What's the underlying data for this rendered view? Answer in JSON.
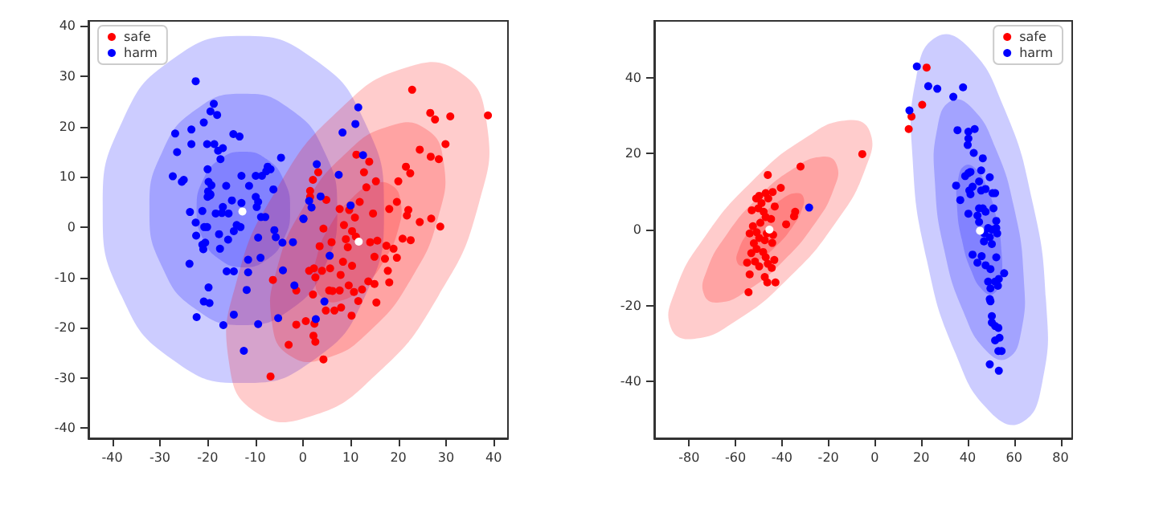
{
  "chart_data": [
    {
      "type": "scatter",
      "xlim": [
        -45,
        43
      ],
      "ylim": [
        -42,
        41
      ],
      "xticks": [
        -40,
        -30,
        -20,
        -10,
        0,
        10,
        20,
        30,
        40
      ],
      "yticks": [
        -40,
        -30,
        -20,
        -10,
        0,
        10,
        20,
        30,
        40
      ],
      "grid": false,
      "legend": "top left",
      "series": [
        {
          "type": "area",
          "color": "#0000ff",
          "x": [
            17,
            13,
            2.3,
            -12.5,
            -27.3,
            -38,
            -42,
            -38,
            -27.3,
            -12.5,
            2.3,
            13
          ],
          "values": [
            3.5,
            20.8,
            33.4,
            38,
            33.4,
            20.8,
            3.5,
            -13.8,
            -26.4,
            -31,
            -26.4,
            -13.8
          ]
        },
        {
          "type": "area",
          "color": "#0000ff",
          "x": [
            7.2,
            4.5,
            -2.6,
            -12.5,
            -22.4,
            -29.5,
            -32.2,
            -29.5,
            -22.4,
            -12.5,
            -2.6,
            4.5
          ],
          "values": [
            3.5,
            15,
            23.4,
            26.5,
            23.4,
            15,
            3.5,
            -8,
            -16.4,
            -19.5,
            -16.4,
            -8
          ]
        },
        {
          "type": "area",
          "color": "#0000ff",
          "x": [
            -2.7,
            -4,
            -7.6,
            -12.5,
            -17.4,
            -21,
            -22.3,
            -21,
            -17.4,
            -12.5,
            -7.6,
            -4
          ],
          "values": [
            3.5,
            9.3,
            13.5,
            15,
            13.5,
            9.3,
            3.5,
            -2.3,
            -6.5,
            -8,
            -6.5,
            -2.3
          ]
        },
        {
          "type": "area",
          "color": "#ff0000",
          "x": [
            32.9,
            38.5,
            36.9,
            28.4,
            15.5,
            1.4,
            -9.9,
            -15.5,
            -13.9,
            -5.4,
            7.5,
            21.6
          ],
          "values": [
            30.8,
            21,
            4.7,
            -13.7,
            -29.2,
            -37.7,
            -36.8,
            -27,
            -10.7,
            7.7,
            23.2,
            31.7
          ]
        },
        {
          "type": "area",
          "color": "#ff0000",
          "x": [
            25.8,
            29.5,
            28.4,
            22.8,
            14.2,
            4.8,
            -2.8,
            -6.5,
            -5.4,
            0.2,
            8.8,
            18.2
          ],
          "values": [
            19.5,
            13,
            2.1,
            -10.1,
            -20.5,
            -26.1,
            -25.5,
            -19,
            -8.1,
            4.1,
            14.5,
            20.1
          ]
        },
        {
          "type": "area",
          "color": "#ff0000",
          "x": [
            18.6,
            20.5,
            20,
            17.1,
            12.8,
            8.1,
            4.4,
            2.5,
            3,
            5.9,
            10.2,
            14.9
          ],
          "values": [
            8.3,
            5,
            -0.4,
            -6.6,
            -11.7,
            -14.6,
            -14.3,
            -11,
            -5.6,
            0.6,
            5.7,
            8.6
          ]
        },
        {
          "name": "safe",
          "marker": "circle",
          "color": "#ff0000",
          "x": [
            22.9,
            26.7,
            27.7,
            30.9,
            38.8,
            29.9,
            24.5,
            26.8,
            28.5,
            21.6,
            22.5,
            20,
            11.2,
            13.9,
            12.8,
            15.3,
            13.3,
            3.2,
            2.1,
            1.5,
            4.9,
            1.5,
            19.7,
            18.1,
            22.1,
            21.8,
            11.9,
            7.7,
            9.7,
            10.9,
            8.6,
            14.7,
            24.5,
            26.9,
            28.8,
            4.3,
            10.3,
            9,
            11.1,
            6,
            3.5,
            14.1,
            15.6,
            17.5,
            19,
            20.9,
            22.6,
            9.4,
            8.4,
            17.2,
            19.7,
            15,
            5.7,
            2.3,
            1.3,
            4,
            10.3,
            7.9,
            17.8,
            2.6,
            2.1,
            5.5,
            6.2,
            7.7,
            9.6,
            10.7,
            12.4,
            13.7,
            15,
            18.1,
            11.6,
            4.8,
            6.6,
            8,
            15.4,
            10.2,
            0.6,
            2.4,
            -1.4,
            2.2,
            2.6,
            4.3,
            -3,
            -6.3,
            -1.4,
            -6.8
          ],
          "values": [
            27.3,
            22.7,
            21.4,
            22,
            22.2,
            16.5,
            15.4,
            14,
            13.5,
            12,
            10.7,
            9.1,
            14.4,
            13,
            10.9,
            9.1,
            7.9,
            10.9,
            9.4,
            7.2,
            5.4,
            6,
            5,
            3.6,
            3.4,
            2.3,
            5,
            3.6,
            3.4,
            1.9,
            0.4,
            2.7,
            1,
            1.7,
            0.1,
            -0.3,
            -0.8,
            -2.4,
            -1.9,
            -3,
            -3.8,
            -3,
            -2.7,
            -3.7,
            -4.3,
            -2.3,
            -2.6,
            -4,
            -6.9,
            -6.3,
            -6.1,
            -5.9,
            -8.2,
            -8.2,
            -8.7,
            -8.7,
            -7.7,
            -9.5,
            -8.7,
            -10,
            -13.4,
            -12.6,
            -12.7,
            -12.6,
            -11.6,
            -12.9,
            -12.4,
            -10.8,
            -11.3,
            -11,
            -14.7,
            -16.6,
            -16.6,
            -16,
            -15,
            -17.6,
            -18.7,
            -19.2,
            -19.4,
            -21.6,
            -22.8,
            -26.3,
            -23.4,
            -10.5,
            -12.6,
            -29.7
          ]
        },
        {
          "name": "harm",
          "marker": "circle",
          "color": "#0000ff",
          "x": [
            -22.5,
            -18.7,
            -19.4,
            -18,
            -20.8,
            -26.8,
            -23.4,
            -14.6,
            -13.3,
            -23.4,
            -20.1,
            -18.6,
            -16.8,
            -17.8,
            -26.4,
            -17.3,
            -4.6,
            -27.3,
            -25.4,
            -25,
            -20,
            -7.4,
            -6.8,
            -7.7,
            -8.6,
            -19.8,
            -19.2,
            -16.1,
            -9.9,
            -6.2,
            -11.3,
            -12.9,
            -19.9,
            -19.5,
            -20,
            -19.4,
            -21.1,
            -23.7,
            -18.3,
            -16.8,
            -17,
            -15.6,
            -14.9,
            -13.1,
            -13.9,
            -14.5,
            -12.9,
            -9.9,
            -9.7,
            -9.4,
            -8.8,
            -7.9,
            -22.5,
            -20.7,
            -20.1,
            -22.4,
            -17.6,
            -15.7,
            -9.4,
            -6,
            -5.7,
            -4.3,
            -2.1,
            0.1,
            -21.1,
            -20.9,
            -17.4,
            -20.5,
            -23.8,
            -11.5,
            -8.9,
            -16,
            -14.5,
            -11.5,
            -4.2,
            -19.8,
            -11.8,
            -1.8,
            -20.8,
            -19.6,
            -14.5,
            -5.2,
            -22.3,
            -16.7,
            -9.4,
            -12.4,
            11.6,
            11,
            8.3,
            12.6,
            2.9,
            7.5,
            3.7,
            1.3,
            1.8,
            10,
            0.1,
            5.6,
            4.5,
            2.7
          ],
          "values": [
            29,
            24.5,
            23,
            22.3,
            20.8,
            18.6,
            19.4,
            18.5,
            18,
            16.5,
            16.5,
            16.5,
            15.7,
            15.2,
            14.9,
            13.5,
            13.8,
            10.1,
            9,
            9.4,
            11.5,
            12,
            11.5,
            11.1,
            10.2,
            9,
            8.3,
            8.2,
            10.2,
            7.5,
            8.2,
            10.2,
            7.1,
            6.3,
            6,
            6.5,
            3.2,
            3,
            2.7,
            4,
            2.8,
            2.7,
            5.3,
            0,
            0.4,
            -0.8,
            4.8,
            6,
            4,
            5,
            2,
            2,
            0.9,
            0,
            0,
            -1.7,
            -1.4,
            -2.5,
            -2.1,
            -0.6,
            -2,
            -3.1,
            -3,
            1.6,
            -3.5,
            -4.4,
            -4.3,
            -3.1,
            -7.3,
            -6.5,
            -6.1,
            -8.8,
            -8.8,
            -9,
            -8.6,
            -12,
            -12.5,
            -11.6,
            -14.8,
            -15.1,
            -17.4,
            -18.1,
            -17.9,
            -19.5,
            -19.3,
            -24.6,
            23.8,
            20.5,
            18.8,
            14.3,
            12.5,
            10.4,
            6.1,
            5.2,
            3.9,
            4.3,
            1.7,
            -5.7,
            -14.8,
            -18.3
          ]
        },
        {
          "marker": "circle",
          "color": "#ffffff",
          "x": [
            11.7,
            -12.7
          ],
          "values": [
            -2.9,
            3.1
          ]
        }
      ]
    },
    {
      "type": "scatter",
      "xlim": [
        -95,
        85
      ],
      "ylim": [
        -55,
        55
      ],
      "xticks": [
        -80,
        -60,
        -40,
        -20,
        0,
        20,
        40,
        60,
        80
      ],
      "yticks": [
        -40,
        -20,
        0,
        20,
        40
      ],
      "grid": false,
      "legend": "top right",
      "series": [
        {
          "type": "area",
          "color": "#ff0000",
          "x": [
            -2.2,
            -4.1,
            -16.9,
            -37.2,
            -59.7,
            -78.1,
            -87.8,
            -85.9,
            -73.1,
            -52.8,
            -30.3,
            -11.9
          ],
          "values": [
            25.9,
            16,
            1.8,
            -12.8,
            -24,
            -28.8,
            -25.9,
            -16,
            -1.8,
            12.8,
            24,
            28.8
          ]
        },
        {
          "type": "area",
          "color": "#ff0000",
          "x": [
            -16.5,
            -17.7,
            -26.3,
            -39.8,
            -54.8,
            -67.1,
            -73.5,
            -72.3,
            -63.7,
            -50.2,
            -35.2,
            -22.9
          ],
          "values": [
            17.2,
            10.7,
            1.2,
            -8.5,
            -16,
            -19.2,
            -17.2,
            -10.7,
            -1.2,
            8.5,
            16,
            19.2
          ]
        },
        {
          "type": "area",
          "color": "#ff0000",
          "x": [
            -30.8,
            -31.4,
            -35.6,
            -42.4,
            -49.9,
            -56,
            -59.3,
            -58.6,
            -54.4,
            -47.6,
            -40.1,
            -34
          ],
          "values": [
            8.6,
            5.3,
            0.6,
            -4.3,
            -8,
            -9.6,
            -8.6,
            -5.3,
            -0.6,
            4.3,
            8,
            9.6
          ]
        },
        {
          "type": "area",
          "color": "#0000ff",
          "x": [
            26.7,
            40.4,
            55.4,
            67.6,
            73.7,
            72.2,
            63.3,
            49.6,
            34.6,
            22.4,
            16.3,
            17.8
          ],
          "values": [
            50.8,
            48,
            32.4,
            8.1,
            -18.4,
            -40,
            -50.8,
            -48,
            -32.4,
            -8.1,
            18.4,
            40
          ]
        },
        {
          "type": "area",
          "color": "#0000ff",
          "x": [
            32.8,
            41.9,
            51.9,
            60.1,
            64.1,
            63.1,
            57.2,
            48.1,
            38.1,
            29.9,
            25.9,
            26.9
          ],
          "values": [
            33.9,
            32,
            21.6,
            5.4,
            -12.3,
            -26.7,
            -33.9,
            -32,
            -21.6,
            -5.4,
            12.3,
            26.7
          ]
        },
        {
          "type": "area",
          "color": "#0000ff",
          "x": [
            38.9,
            43.5,
            48.5,
            52.5,
            54.6,
            54.1,
            51.1,
            46.5,
            41.5,
            37.5,
            35.4,
            35.9
          ],
          "values": [
            16.9,
            16,
            10.8,
            2.7,
            -6.1,
            -13.3,
            -16.9,
            -16,
            -10.8,
            -2.7,
            6.1,
            13.3
          ]
        },
        {
          "name": "safe",
          "marker": "circle",
          "color": "#ff0000",
          "x": [
            -5.4,
            -32,
            -46.1,
            -40.5,
            -44,
            -47,
            -49.8,
            -51.1,
            -45.9,
            -48.8,
            -43.1,
            -53,
            -50.2,
            -47.9,
            -47,
            -44.7,
            -34.3,
            -34.8,
            -38.2,
            -49.3,
            -52.5,
            -50.9,
            -53.9,
            -46.5,
            -43.8,
            -49.8,
            -47.4,
            -52.1,
            -44.2,
            -50.9,
            -48.1,
            -53.2,
            -47,
            -43.3,
            -55,
            -51.6,
            -49.8,
            -46.1,
            -44.4,
            -53.9,
            -47.4,
            -46.3,
            -42.8,
            -54.4,
            22.3,
            20.4,
            15.8,
            14.6
          ],
          "values": [
            19.9,
            16.6,
            14.4,
            11,
            9.9,
            9.6,
            8.9,
            8.2,
            8.2,
            7,
            6.1,
            5.1,
            5.6,
            4.7,
            3.3,
            2.8,
            4.7,
            3.5,
            1.4,
            1.8,
            0.9,
            -0.7,
            -1,
            -1,
            -1.4,
            -2.2,
            -2.8,
            -3.6,
            -3.5,
            -5.1,
            -5.9,
            -6.2,
            -7.3,
            -8,
            -8.7,
            -8.4,
            -9.7,
            -9,
            -10.1,
            -11.8,
            -12.5,
            -13.9,
            -13.9,
            -16.5,
            42.7,
            32.9,
            29.8,
            26.5
          ]
        },
        {
          "name": "harm",
          "marker": "circle",
          "color": "#0000ff",
          "x": [
            -28.3,
            18.1,
            23,
            14.9,
            26.9,
            33.8,
            38,
            35.6,
            40.3,
            43,
            40.3,
            40,
            42.6,
            46.5,
            45.8,
            40.3,
            38.9,
            41.2,
            44.9,
            49.5,
            35,
            42.1,
            40.7,
            45.8,
            47.7,
            50.7,
            51.8,
            36.8,
            41.2,
            44.9,
            46.5,
            51.1,
            40.3,
            44.2,
            47.7,
            52.3,
            44.9,
            48.8,
            50.4,
            52.3,
            47.2,
            49.5,
            52.7,
            47,
            50.4,
            42.1,
            46,
            44.2,
            47.7,
            52.3,
            49.8,
            55.7,
            48.8,
            51.8,
            53.4,
            49.8,
            53,
            49.5,
            49.8,
            50.4,
            50.4,
            51.8,
            53.2,
            51.8,
            53.7,
            53.2,
            54.6,
            49.5,
            53.4
          ],
          "values": [
            5.8,
            43,
            37.8,
            31.4,
            37.1,
            35,
            37.5,
            26.2,
            25.8,
            26.5,
            24,
            22.3,
            20.2,
            18.8,
            15.6,
            14.9,
            14.1,
            15.2,
            12.7,
            13.8,
            11.6,
            11.3,
            10.3,
            10.3,
            10.7,
            9.6,
            9.6,
            7.8,
            9.3,
            5.6,
            5.6,
            5.6,
            4.2,
            3.7,
            4.7,
            2.3,
            2,
            0.4,
            0,
            0.4,
            -1,
            -2,
            -1,
            -3.1,
            -3.8,
            -6.6,
            -7,
            -8.7,
            -9.4,
            -7.3,
            -10.4,
            -11.5,
            -13.7,
            -13.7,
            -13,
            -15.5,
            -14.8,
            -18.3,
            -18.9,
            -22.8,
            -24.5,
            -25.4,
            -25.9,
            -29.2,
            -28.5,
            -32,
            -32,
            -35.5,
            -37.2
          ]
        },
        {
          "marker": "circle",
          "color": "#ffffff",
          "x": [
            -45.4,
            45.3
          ],
          "values": [
            0,
            -0.3
          ]
        }
      ]
    }
  ]
}
